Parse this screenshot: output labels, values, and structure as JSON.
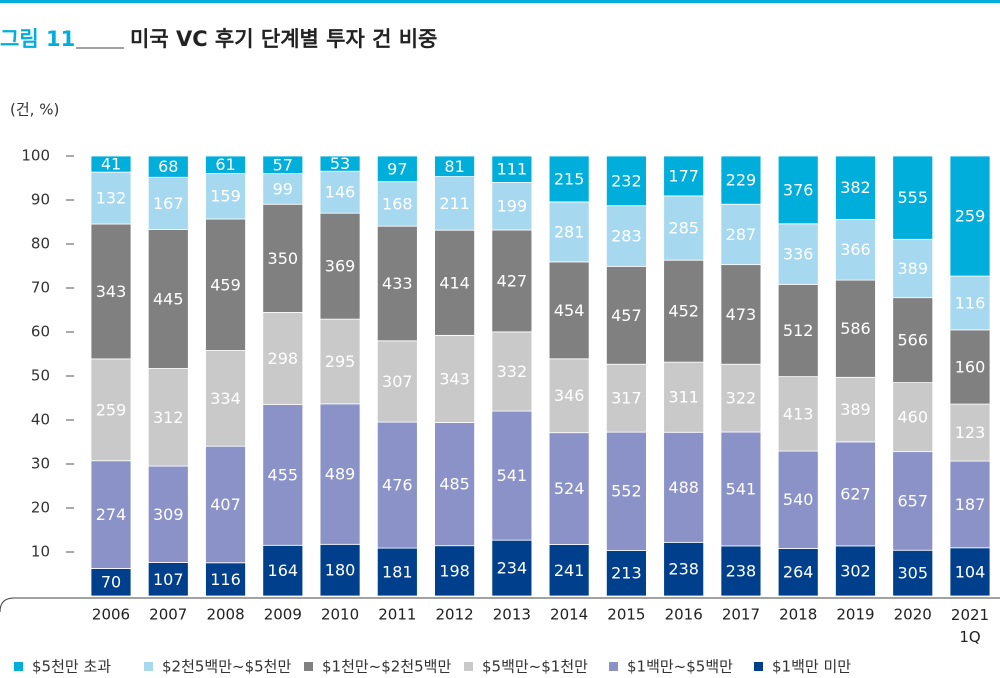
{
  "chart_data": {
    "type": "stacked-percent-bar",
    "figure_label": "그림 11",
    "title": "미국 VC 후기 단계별 투자 건 비중",
    "y_label": "(건, %)",
    "categories": [
      "2006",
      "2007",
      "2008",
      "2009",
      "2010",
      "2011",
      "2012",
      "2013",
      "2014",
      "2015",
      "2016",
      "2017",
      "2018",
      "2019",
      "2020",
      "2021\n1Q"
    ],
    "ylim": [
      0,
      100
    ],
    "yticks": [
      10,
      20,
      30,
      40,
      50,
      60,
      70,
      80,
      90,
      100
    ],
    "series": [
      {
        "name": "$5천만 초과",
        "color": "#00aedc",
        "values": [
          41,
          68,
          61,
          57,
          53,
          97,
          81,
          111,
          215,
          232,
          177,
          229,
          376,
          382,
          555,
          259
        ]
      },
      {
        "name": "$2천5백만~$5천만",
        "color": "#a6d9ef",
        "values": [
          132,
          167,
          159,
          99,
          146,
          168,
          211,
          199,
          281,
          283,
          285,
          287,
          336,
          366,
          389,
          116
        ]
      },
      {
        "name": "$1천만~$2천5백만",
        "color": "#808080",
        "values": [
          343,
          445,
          459,
          350,
          369,
          433,
          414,
          427,
          454,
          457,
          452,
          473,
          512,
          586,
          566,
          160
        ]
      },
      {
        "name": "$5백만~$1천만",
        "color": "#c9c9c9",
        "values": [
          259,
          312,
          334,
          298,
          295,
          307,
          343,
          332,
          346,
          317,
          311,
          322,
          413,
          389,
          460,
          123
        ]
      },
      {
        "name": "$1백만~$5백만",
        "color": "#8a92c7",
        "values": [
          274,
          309,
          407,
          455,
          489,
          476,
          485,
          541,
          524,
          552,
          488,
          541,
          540,
          627,
          657,
          187
        ]
      },
      {
        "name": "$1백만 미만",
        "color": "#003f8c",
        "values": [
          70,
          107,
          116,
          164,
          180,
          181,
          198,
          234,
          241,
          213,
          238,
          238,
          264,
          302,
          305,
          104
        ]
      }
    ]
  }
}
